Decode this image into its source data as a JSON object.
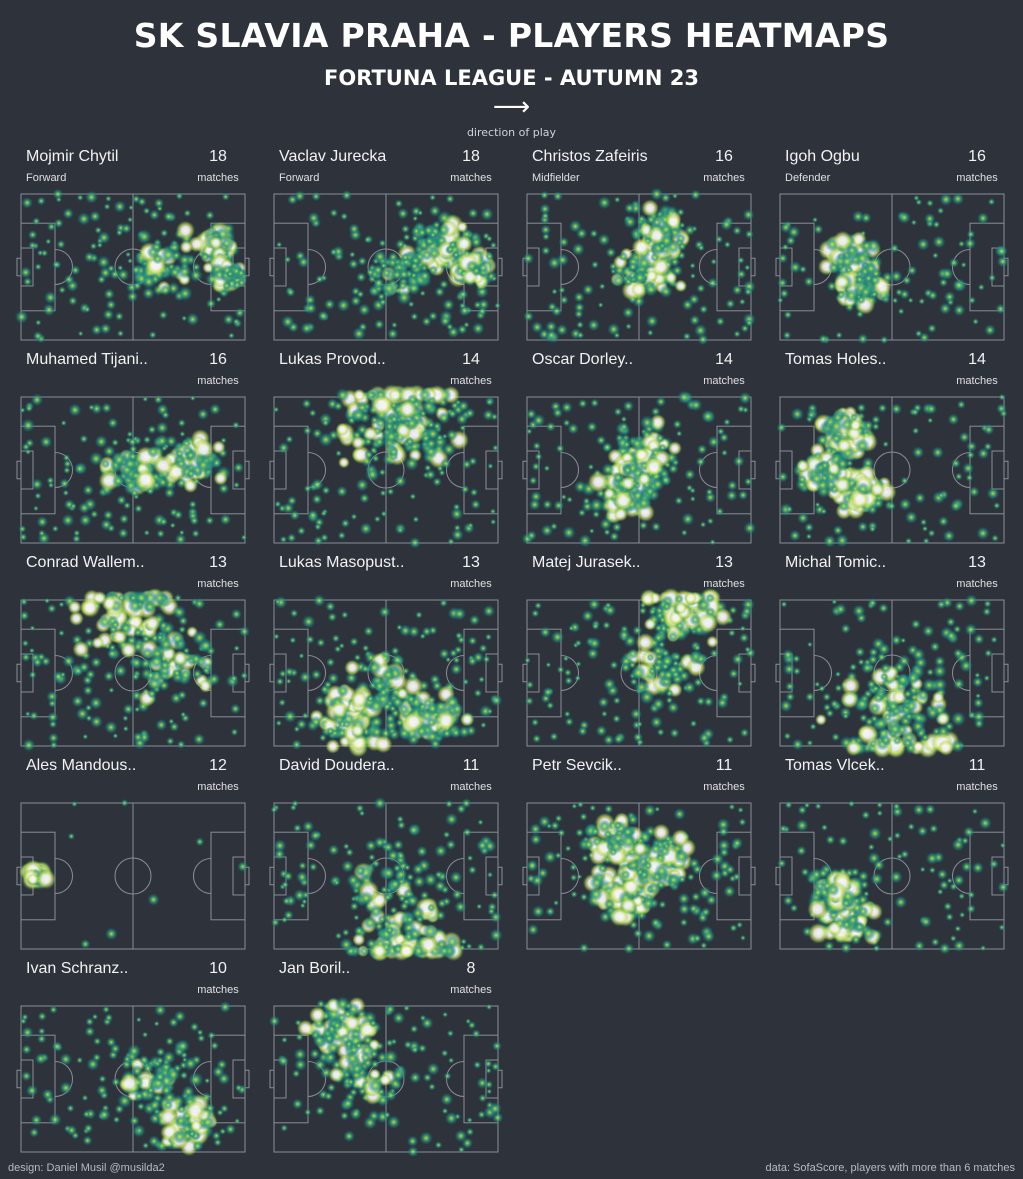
{
  "header": {
    "title": "SK SLAVIA PRAHA - PLAYERS HEATMAPS",
    "subtitle": "FORTUNA LEAGUE - AUTUMN 23",
    "arrow": "⟶",
    "direction_label": "direction of play"
  },
  "footer": {
    "design": "design: Daniel Musil @musilda2",
    "source": "data: SofaScore, players with more than 6 matches"
  },
  "colors": {
    "background": "#2d323b",
    "pitch_lines": "#8a8f96",
    "heat_low": "#1f5f8a",
    "heat_mid": "#2aa87a",
    "heat_high": "#d9e84a",
    "heat_max": "#ffffff"
  },
  "chart_data": {
    "type": "heatmap",
    "title": "SK SLAVIA PRAHA - PLAYERS HEATMAPS",
    "subtitle": "FORTUNA LEAGUE - AUTUMN 23",
    "matches_label": "matches",
    "players": [
      {
        "name": "Mojmir Chytil",
        "position": "Forward",
        "matches": 18,
        "hotspots": [
          [
            0.88,
            0.35,
            0.08,
            1.0
          ],
          [
            0.65,
            0.5,
            0.22,
            0.55
          ],
          [
            0.92,
            0.55,
            0.1,
            0.8
          ]
        ],
        "spread": 0.75
      },
      {
        "name": "Vaclav Jurecka",
        "position": "Forward",
        "matches": 18,
        "hotspots": [
          [
            0.75,
            0.35,
            0.18,
            0.85
          ],
          [
            0.88,
            0.5,
            0.1,
            0.9
          ],
          [
            0.55,
            0.55,
            0.2,
            0.5
          ]
        ],
        "spread": 0.75
      },
      {
        "name": "Christos Zafeiris",
        "position": "Midfielder",
        "matches": 16,
        "hotspots": [
          [
            0.55,
            0.5,
            0.22,
            0.95
          ],
          [
            0.6,
            0.25,
            0.15,
            0.7
          ]
        ],
        "spread": 0.7
      },
      {
        "name": "Igoh Ogbu",
        "position": "Defender",
        "matches": 16,
        "hotspots": [
          [
            0.32,
            0.45,
            0.14,
            1.0
          ],
          [
            0.35,
            0.65,
            0.15,
            0.7
          ]
        ],
        "spread": 0.6
      },
      {
        "name": "Muhamed Tijani..",
        "matches": 16,
        "hotspots": [
          [
            0.75,
            0.45,
            0.2,
            0.85
          ],
          [
            0.5,
            0.5,
            0.18,
            0.6
          ]
        ],
        "spread": 0.75
      },
      {
        "name": "Lukas Provod..",
        "matches": 14,
        "hotspots": [
          [
            0.55,
            0.06,
            0.4,
            1.0
          ],
          [
            0.55,
            0.2,
            0.3,
            0.55
          ]
        ],
        "spread": 0.7
      },
      {
        "name": "Oscar Dorley..",
        "matches": 14,
        "hotspots": [
          [
            0.5,
            0.4,
            0.2,
            1.0
          ],
          [
            0.45,
            0.65,
            0.2,
            0.8
          ]
        ],
        "spread": 0.65
      },
      {
        "name": "Tomas Holes..",
        "matches": 14,
        "hotspots": [
          [
            0.3,
            0.25,
            0.15,
            1.0
          ],
          [
            0.35,
            0.65,
            0.15,
            1.0
          ],
          [
            0.2,
            0.5,
            0.15,
            0.7
          ]
        ],
        "spread": 0.6
      },
      {
        "name": "Conrad Wallem..",
        "matches": 13,
        "hotspots": [
          [
            0.5,
            0.1,
            0.3,
            1.0
          ],
          [
            0.7,
            0.45,
            0.25,
            0.6
          ]
        ],
        "spread": 0.7
      },
      {
        "name": "Lukas Masopust..",
        "matches": 13,
        "hotspots": [
          [
            0.35,
            0.8,
            0.22,
            1.0
          ],
          [
            0.7,
            0.82,
            0.2,
            0.85
          ],
          [
            0.5,
            0.55,
            0.25,
            0.5
          ]
        ],
        "spread": 0.75
      },
      {
        "name": "Matej Jurasek..",
        "matches": 13,
        "hotspots": [
          [
            0.7,
            0.08,
            0.2,
            0.95
          ],
          [
            0.6,
            0.45,
            0.25,
            0.55
          ]
        ],
        "spread": 0.7
      },
      {
        "name": "Michal Tomic..",
        "matches": 13,
        "hotspots": [
          [
            0.5,
            0.85,
            0.35,
            0.95
          ],
          [
            0.5,
            0.6,
            0.3,
            0.5
          ]
        ],
        "spread": 0.65
      },
      {
        "name": "Ales Mandous..",
        "matches": 12,
        "hotspots": [
          [
            0.07,
            0.5,
            0.05,
            1.0
          ]
        ],
        "spread": 0.05
      },
      {
        "name": "David Doudera..",
        "matches": 11,
        "hotspots": [
          [
            0.6,
            0.95,
            0.35,
            1.0
          ],
          [
            0.5,
            0.6,
            0.3,
            0.35
          ]
        ],
        "spread": 0.7
      },
      {
        "name": "Petr Sevcik..",
        "matches": 11,
        "hotspots": [
          [
            0.45,
            0.6,
            0.2,
            1.0
          ],
          [
            0.6,
            0.4,
            0.2,
            0.8
          ],
          [
            0.4,
            0.25,
            0.15,
            0.7
          ]
        ],
        "spread": 0.7
      },
      {
        "name": "Tomas Vlcek..",
        "matches": 11,
        "hotspots": [
          [
            0.3,
            0.8,
            0.15,
            1.0
          ],
          [
            0.25,
            0.6,
            0.15,
            0.7
          ]
        ],
        "spread": 0.6
      },
      {
        "name": "Ivan Schranz..",
        "matches": 10,
        "hotspots": [
          [
            0.75,
            0.8,
            0.18,
            0.8
          ],
          [
            0.6,
            0.5,
            0.25,
            0.55
          ]
        ],
        "spread": 0.75
      },
      {
        "name": "Jan Boril..",
        "matches": 8,
        "hotspots": [
          [
            0.3,
            0.15,
            0.2,
            1.0
          ],
          [
            0.4,
            0.5,
            0.25,
            0.5
          ]
        ],
        "spread": 0.6
      }
    ]
  }
}
